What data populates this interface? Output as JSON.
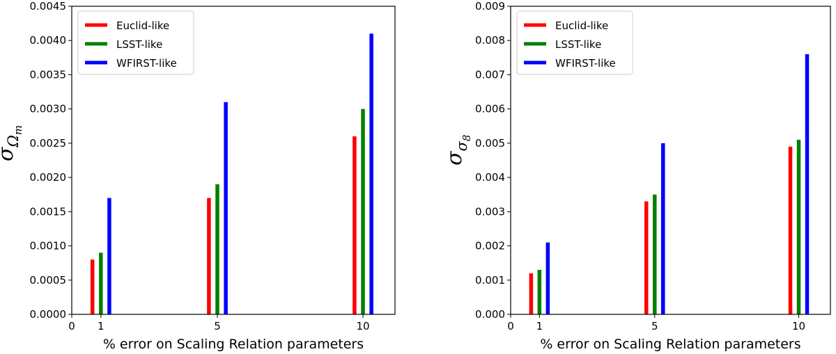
{
  "chart_data": [
    {
      "type": "bar",
      "x": [
        1,
        5,
        10
      ],
      "x_ticks": [
        "0",
        "1",
        "5",
        "10"
      ],
      "xlabel": "% error on Scaling Relation parameters",
      "ylabel": {
        "main": "σ",
        "sub": "Ω",
        "subsub": "m"
      },
      "ylim": [
        0,
        0.0045
      ],
      "y_ticks": [
        "0.0000",
        "0.0005",
        "0.0010",
        "0.0015",
        "0.0020",
        "0.0025",
        "0.0030",
        "0.0035",
        "0.0040",
        "0.0045"
      ],
      "series": [
        {
          "name": "Euclid-like",
          "color": "#ff0000",
          "values": [
            0.0008,
            0.0017,
            0.0026
          ]
        },
        {
          "name": "LSST-like",
          "color": "#008000",
          "values": [
            0.0009,
            0.0019,
            0.003
          ]
        },
        {
          "name": "WFIRST-like",
          "color": "#0000ff",
          "values": [
            0.0017,
            0.0031,
            0.0041
          ]
        }
      ],
      "legend_position": "top-left",
      "grid": false
    },
    {
      "type": "bar",
      "x": [
        1,
        5,
        10
      ],
      "x_ticks": [
        "0",
        "1",
        "5",
        "10"
      ],
      "xlabel": "% error on Scaling Relation parameters",
      "ylabel": {
        "main": "σ",
        "sub": "σ",
        "subsub": "8"
      },
      "ylim": [
        0,
        0.009
      ],
      "y_ticks": [
        "0.000",
        "0.001",
        "0.002",
        "0.003",
        "0.004",
        "0.005",
        "0.006",
        "0.007",
        "0.008",
        "0.009"
      ],
      "series": [
        {
          "name": "Euclid-like",
          "color": "#ff0000",
          "values": [
            0.0012,
            0.0033,
            0.0049
          ]
        },
        {
          "name": "LSST-like",
          "color": "#008000",
          "values": [
            0.0013,
            0.0035,
            0.0051
          ]
        },
        {
          "name": "WFIRST-like",
          "color": "#0000ff",
          "values": [
            0.0021,
            0.005,
            0.0076
          ]
        }
      ],
      "legend_position": "top-left",
      "grid": false
    }
  ]
}
